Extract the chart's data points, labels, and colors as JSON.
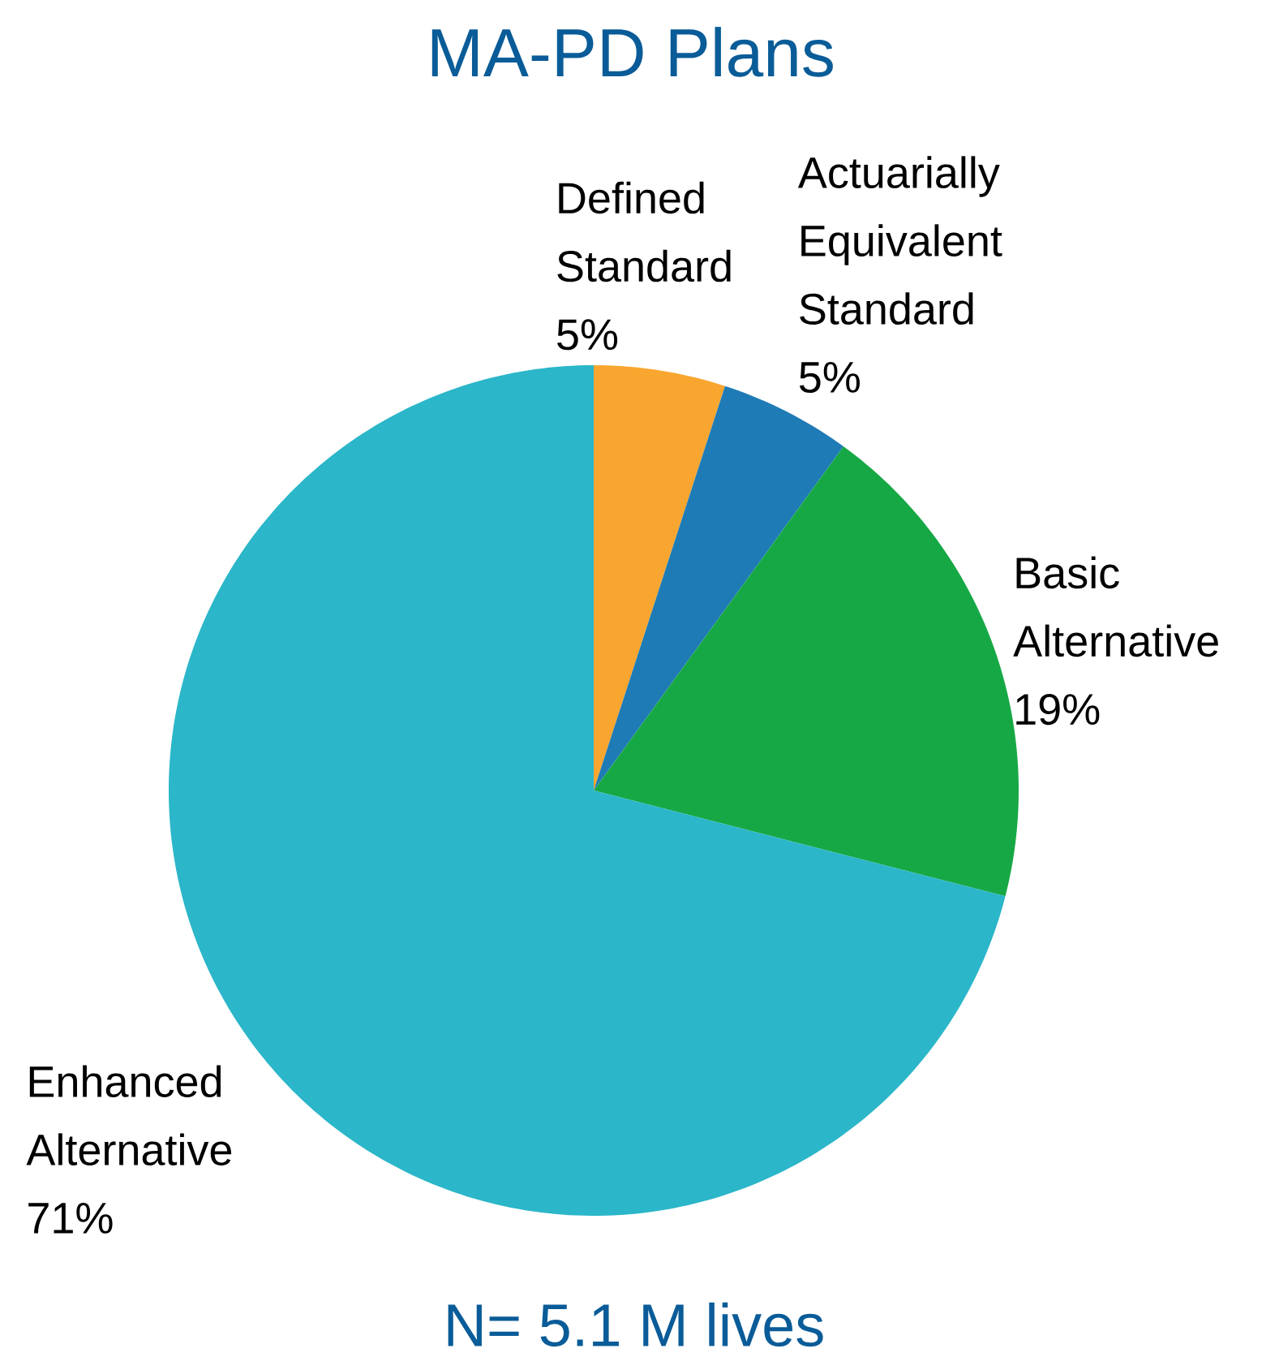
{
  "chart_data": {
    "type": "pie",
    "title": "MA-PD Plans",
    "categories": [
      "Defined Standard",
      "Actuarially Equivalent Standard",
      "Basic Alternative",
      "Enhanced Alternative"
    ],
    "values": [
      5,
      5,
      19,
      71
    ],
    "value_labels": [
      "5%",
      "5%",
      "19%",
      "71%"
    ],
    "colors": [
      "#f9a630",
      "#1f7bb5",
      "#17a846",
      "#2bb6c9"
    ],
    "annotations": [
      "N= 5.1 M lives"
    ]
  }
}
